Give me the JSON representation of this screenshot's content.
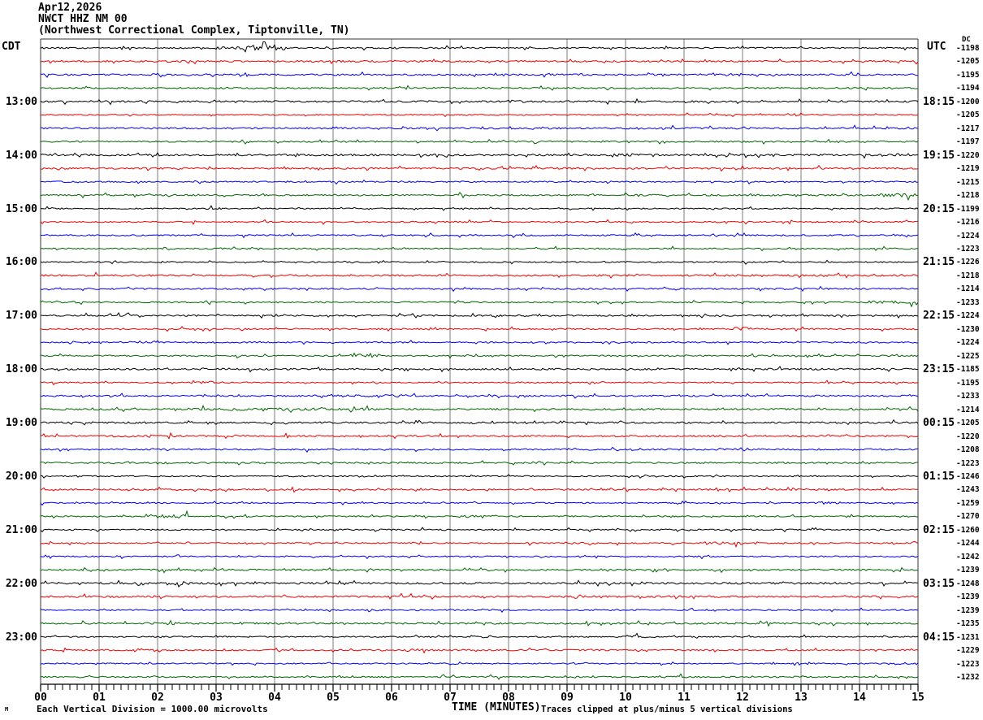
{
  "title": {
    "date": "Apr12,2026",
    "station": "NWCT HHZ NM 00",
    "location": "(Northwest Correctional Complex, Tiptonville, TN)"
  },
  "axes": {
    "left_header": "CDT",
    "right_header": "UTC",
    "dc_header": "DC",
    "x_title": "TIME (MINUTES)",
    "x_ticks": [
      "00",
      "01",
      "02",
      "03",
      "04",
      "05",
      "06",
      "07",
      "08",
      "09",
      "10",
      "11",
      "12",
      "13",
      "14",
      "15"
    ],
    "label_rows": [
      5,
      9,
      13,
      17,
      21,
      25,
      29,
      33,
      37,
      41,
      45
    ],
    "left_labels": [
      "13:00",
      "14:00",
      "15:00",
      "16:00",
      "17:00",
      "18:00",
      "19:00",
      "20:00",
      "21:00",
      "22:00",
      "23:00"
    ],
    "right_labels": [
      "18:15",
      "19:15",
      "20:15",
      "21:15",
      "22:15",
      "23:15",
      "00:15",
      "01:15",
      "02:15",
      "03:15",
      "04:15"
    ]
  },
  "footer": {
    "scale_note": "Each Vertical Division = 1000.00 microvolts",
    "clip_note": "Traces clipped at plus/minus 5 vertical divisions",
    "corner_mark": "M"
  },
  "chart_data": {
    "type": "line",
    "subtype": "helicorder-seismogram",
    "x_range_minutes": [
      0,
      15
    ],
    "minutes_per_line": 15,
    "lines": 48,
    "grid": "vertical gridline each minute",
    "colors": {
      "black": "#000000",
      "red": "#ee0000",
      "blue": "#0000ee",
      "green": "#006600",
      "gridline": "#7b7b7b",
      "border": "#333333"
    },
    "color_cycle": [
      "black",
      "red",
      "blue",
      "green"
    ],
    "traces": [
      {
        "row": 1,
        "start_cdt": "12:00",
        "end_utc": "17:15",
        "color": "black",
        "dc": -1198
      },
      {
        "row": 2,
        "start_cdt": "12:15",
        "end_utc": "17:30",
        "color": "red",
        "dc": -1205
      },
      {
        "row": 3,
        "start_cdt": "12:30",
        "end_utc": "17:45",
        "color": "blue",
        "dc": -1195
      },
      {
        "row": 4,
        "start_cdt": "12:45",
        "end_utc": "18:00",
        "color": "green",
        "dc": -1194
      },
      {
        "row": 5,
        "start_cdt": "13:00",
        "end_utc": "18:15",
        "color": "black",
        "dc": -1200
      },
      {
        "row": 6,
        "start_cdt": "13:15",
        "end_utc": "18:30",
        "color": "red",
        "dc": -1205
      },
      {
        "row": 7,
        "start_cdt": "13:30",
        "end_utc": "18:45",
        "color": "blue",
        "dc": -1217
      },
      {
        "row": 8,
        "start_cdt": "13:45",
        "end_utc": "19:00",
        "color": "green",
        "dc": -1197
      },
      {
        "row": 9,
        "start_cdt": "14:00",
        "end_utc": "19:15",
        "color": "black",
        "dc": -1220
      },
      {
        "row": 10,
        "start_cdt": "14:15",
        "end_utc": "19:30",
        "color": "red",
        "dc": -1219
      },
      {
        "row": 11,
        "start_cdt": "14:30",
        "end_utc": "19:45",
        "color": "blue",
        "dc": -1215
      },
      {
        "row": 12,
        "start_cdt": "14:45",
        "end_utc": "20:00",
        "color": "green",
        "dc": -1218
      },
      {
        "row": 13,
        "start_cdt": "15:00",
        "end_utc": "20:15",
        "color": "black",
        "dc": -1199
      },
      {
        "row": 14,
        "start_cdt": "15:15",
        "end_utc": "20:30",
        "color": "red",
        "dc": -1216
      },
      {
        "row": 15,
        "start_cdt": "15:30",
        "end_utc": "20:45",
        "color": "blue",
        "dc": -1224
      },
      {
        "row": 16,
        "start_cdt": "15:45",
        "end_utc": "21:00",
        "color": "green",
        "dc": -1223
      },
      {
        "row": 17,
        "start_cdt": "16:00",
        "end_utc": "21:15",
        "color": "black",
        "dc": -1226
      },
      {
        "row": 18,
        "start_cdt": "16:15",
        "end_utc": "21:30",
        "color": "red",
        "dc": -1218
      },
      {
        "row": 19,
        "start_cdt": "16:30",
        "end_utc": "21:45",
        "color": "blue",
        "dc": -1214
      },
      {
        "row": 20,
        "start_cdt": "16:45",
        "end_utc": "22:00",
        "color": "green",
        "dc": -1233
      },
      {
        "row": 21,
        "start_cdt": "17:00",
        "end_utc": "22:15",
        "color": "black",
        "dc": -1224
      },
      {
        "row": 22,
        "start_cdt": "17:15",
        "end_utc": "22:30",
        "color": "red",
        "dc": -1230
      },
      {
        "row": 23,
        "start_cdt": "17:30",
        "end_utc": "22:45",
        "color": "blue",
        "dc": -1224
      },
      {
        "row": 24,
        "start_cdt": "17:45",
        "end_utc": "23:00",
        "color": "green",
        "dc": -1225
      },
      {
        "row": 25,
        "start_cdt": "18:00",
        "end_utc": "23:15",
        "color": "black",
        "dc": -1185
      },
      {
        "row": 26,
        "start_cdt": "18:15",
        "end_utc": "23:30",
        "color": "red",
        "dc": -1195
      },
      {
        "row": 27,
        "start_cdt": "18:30",
        "end_utc": "23:45",
        "color": "blue",
        "dc": -1233
      },
      {
        "row": 28,
        "start_cdt": "18:45",
        "end_utc": "00:00",
        "color": "green",
        "dc": -1214
      },
      {
        "row": 29,
        "start_cdt": "19:00",
        "end_utc": "00:15",
        "color": "black",
        "dc": -1205
      },
      {
        "row": 30,
        "start_cdt": "19:15",
        "end_utc": "00:30",
        "color": "red",
        "dc": -1220
      },
      {
        "row": 31,
        "start_cdt": "19:30",
        "end_utc": "00:45",
        "color": "blue",
        "dc": -1208
      },
      {
        "row": 32,
        "start_cdt": "19:45",
        "end_utc": "01:00",
        "color": "green",
        "dc": -1223
      },
      {
        "row": 33,
        "start_cdt": "20:00",
        "end_utc": "01:15",
        "color": "black",
        "dc": -1246
      },
      {
        "row": 34,
        "start_cdt": "20:15",
        "end_utc": "01:30",
        "color": "red",
        "dc": -1243
      },
      {
        "row": 35,
        "start_cdt": "20:30",
        "end_utc": "01:45",
        "color": "blue",
        "dc": -1259
      },
      {
        "row": 36,
        "start_cdt": "20:45",
        "end_utc": "02:00",
        "color": "green",
        "dc": -1270
      },
      {
        "row": 37,
        "start_cdt": "21:00",
        "end_utc": "02:15",
        "color": "black",
        "dc": -1260
      },
      {
        "row": 38,
        "start_cdt": "21:15",
        "end_utc": "02:30",
        "color": "red",
        "dc": -1244
      },
      {
        "row": 39,
        "start_cdt": "21:30",
        "end_utc": "02:45",
        "color": "blue",
        "dc": -1242
      },
      {
        "row": 40,
        "start_cdt": "21:45",
        "end_utc": "03:00",
        "color": "green",
        "dc": -1239
      },
      {
        "row": 41,
        "start_cdt": "22:00",
        "end_utc": "03:15",
        "color": "black",
        "dc": -1248
      },
      {
        "row": 42,
        "start_cdt": "22:15",
        "end_utc": "03:30",
        "color": "red",
        "dc": -1239
      },
      {
        "row": 43,
        "start_cdt": "22:30",
        "end_utc": "03:45",
        "color": "blue",
        "dc": -1239
      },
      {
        "row": 44,
        "start_cdt": "22:45",
        "end_utc": "04:00",
        "color": "green",
        "dc": -1235
      },
      {
        "row": 45,
        "start_cdt": "23:00",
        "end_utc": "04:15",
        "color": "black",
        "dc": -1231
      },
      {
        "row": 46,
        "start_cdt": "23:15",
        "end_utc": "04:30",
        "color": "red",
        "dc": -1229
      },
      {
        "row": 47,
        "start_cdt": "23:30",
        "end_utc": "04:45",
        "color": "blue",
        "dc": -1223
      },
      {
        "row": 48,
        "start_cdt": "23:45",
        "end_utc": "05:00",
        "color": "green",
        "dc": -1232
      }
    ],
    "events": [
      {
        "row": 1,
        "from": 3.0,
        "to": 3.45,
        "amp": 1.8
      },
      {
        "row": 1,
        "from": 3.45,
        "to": 4.2,
        "amp": 4.5
      },
      {
        "row": 3,
        "from": 1.8,
        "to": 2.15,
        "amp": 1.7
      },
      {
        "row": 5,
        "from": 8.0,
        "to": 8.35,
        "amp": 1.6
      },
      {
        "row": 7,
        "from": 11.55,
        "to": 11.9,
        "amp": 1.7
      },
      {
        "row": 9,
        "from": 9.8,
        "to": 10.15,
        "amp": 1.8
      },
      {
        "row": 12,
        "from": 14.35,
        "to": 14.95,
        "amp": 2.0
      },
      {
        "row": 13,
        "from": 2.75,
        "to": 3.1,
        "amp": 1.8
      },
      {
        "row": 20,
        "from": 14.2,
        "to": 15.0,
        "amp": 2.0
      },
      {
        "row": 22,
        "from": 11.85,
        "to": 12.2,
        "amp": 2.6
      },
      {
        "row": 24,
        "from": 5.3,
        "to": 5.8,
        "amp": 2.3
      },
      {
        "row": 26,
        "from": 2.5,
        "to": 2.95,
        "amp": 2.0
      },
      {
        "row": 27,
        "from": 5.0,
        "to": 6.5,
        "amp": 1.5
      },
      {
        "row": 28,
        "from": 2.5,
        "to": 6.0,
        "amp": 1.5
      },
      {
        "row": 35,
        "from": 13.25,
        "to": 13.7,
        "amp": 2.2
      },
      {
        "row": 36,
        "from": 1.8,
        "to": 2.5,
        "amp": 3.2
      },
      {
        "row": 36,
        "from": 7.25,
        "to": 7.8,
        "amp": 2.6
      },
      {
        "row": 38,
        "from": 9.05,
        "to": 9.5,
        "amp": 1.7
      },
      {
        "row": 38,
        "from": 11.35,
        "to": 12.0,
        "amp": 2.4
      },
      {
        "row": 41,
        "from": 2.15,
        "to": 2.55,
        "amp": 2.0
      },
      {
        "row": 44,
        "from": 2.15,
        "to": 2.5,
        "amp": 1.8
      },
      {
        "row": 45,
        "from": 7.35,
        "to": 7.7,
        "amp": 2.4
      },
      {
        "row": 45,
        "from": 9.85,
        "to": 10.2,
        "amp": 2.0
      },
      {
        "row": 46,
        "from": 6.25,
        "to": 6.6,
        "amp": 1.7
      },
      {
        "row": 47,
        "from": 9.05,
        "to": 9.35,
        "amp": 1.8
      },
      {
        "row": 47,
        "from": 14.5,
        "to": 15.0,
        "amp": 1.8
      },
      {
        "row": 48,
        "from": 10.65,
        "to": 11.05,
        "amp": 1.6
      }
    ]
  }
}
